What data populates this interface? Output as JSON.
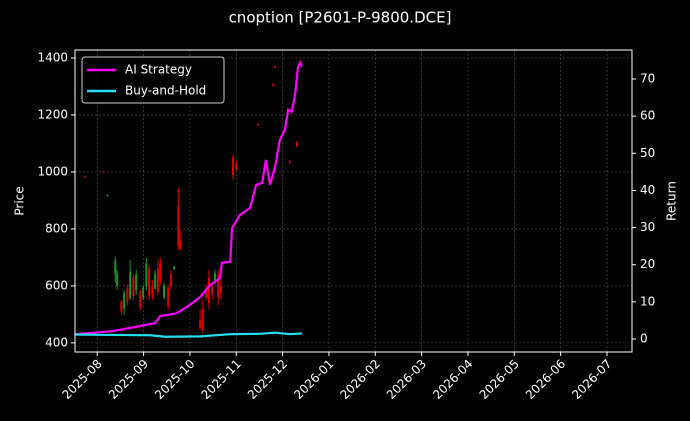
{
  "chart_data": {
    "type": "candlestick",
    "title": "cnoption [P2601-P-9800.DCE]",
    "ylabel": "Price",
    "y2label": "Return",
    "xlim": [
      -0.48,
      11.54
    ],
    "xticks": [
      {
        "value": 0,
        "label": "2025-08"
      },
      {
        "value": 1,
        "label": "2025-09"
      },
      {
        "value": 2,
        "label": "2025-10"
      },
      {
        "value": 3,
        "label": "2025-11"
      },
      {
        "value": 4,
        "label": "2025-12"
      },
      {
        "value": 5,
        "label": "2026-01"
      },
      {
        "value": 6,
        "label": "2026-02"
      },
      {
        "value": 7,
        "label": "2026-03"
      },
      {
        "value": 8,
        "label": "2026-04"
      },
      {
        "value": 9,
        "label": "2026-05"
      },
      {
        "value": 10,
        "label": "2026-06"
      },
      {
        "value": 11,
        "label": "2026-07"
      }
    ],
    "ylim": [
      368,
      1428
    ],
    "yticks": [
      400,
      600,
      800,
      1000,
      1200,
      1400
    ],
    "y2lim": [
      -3.5,
      77.8
    ],
    "y2ticks": [
      0,
      10,
      20,
      30,
      40,
      50,
      60,
      70
    ],
    "grid": true,
    "legend": "upper left",
    "up_color": "#1a9a1a",
    "down_color": "#e00000",
    "candles": {
      "x": [
        -0.26,
        0.13,
        0.22,
        0.39,
        0.43,
        0.52,
        0.58,
        0.65,
        0.71,
        0.78,
        0.84,
        0.93,
        0.99,
        1.06,
        1.12,
        1.19,
        1.25,
        1.31,
        1.36,
        1.44,
        1.53,
        1.59,
        1.66,
        1.75,
        1.79,
        2.22,
        2.28,
        2.35,
        2.41,
        2.48,
        2.54,
        2.61,
        2.67,
        2.93,
        3.0,
        3.47,
        3.79,
        3.84,
        4.16,
        4.31
      ],
      "open": [
        985,
        1002,
        915,
        640,
        600,
        545,
        520,
        590,
        560,
        630,
        585,
        580,
        560,
        600,
        660,
        600,
        590,
        660,
        680,
        560,
        590,
        640,
        660,
        880,
        760,
        480,
        520,
        590,
        630,
        600,
        610,
        640,
        600,
        1050,
        1030,
        1168,
        1307,
        1370,
        1038,
        1105
      ],
      "high": [
        988,
        1003,
        921,
        702,
        656,
        551,
        586,
        604,
        691,
        639,
        656,
        586,
        604,
        698,
        674,
        621,
        656,
        691,
        698,
        611,
        604,
        656,
        670,
        944,
        796,
        516,
        551,
        604,
        656,
        604,
        656,
        656,
        621,
        1060,
        1042,
        1170,
        1310,
        1372,
        1040,
        1108
      ],
      "low": [
        980,
        998,
        914,
        611,
        586,
        498,
        498,
        533,
        551,
        551,
        568,
        516,
        551,
        586,
        551,
        551,
        586,
        568,
        604,
        551,
        516,
        586,
        655,
        726,
        726,
        446,
        435,
        551,
        516,
        551,
        604,
        533,
        551,
        972,
        1007,
        1162,
        1300,
        1364,
        1030,
        1088
      ],
      "close": [
        981,
        999,
        920,
        690,
        640,
        510,
        575,
        545,
        650,
        565,
        640,
        525,
        595,
        680,
        565,
        560,
        640,
        580,
        620,
        600,
        530,
        600,
        668,
        740,
        730,
        455,
        445,
        560,
        540,
        570,
        645,
        560,
        575,
        990,
        1010,
        1163,
        1302,
        1365,
        1032,
        1090
      ]
    },
    "series": [
      {
        "name": "AI Strategy",
        "color": "#ff00ff",
        "axis": "y2",
        "x": [
          -0.47,
          0.32,
          0.93,
          1.25,
          1.36,
          1.68,
          1.79,
          2.0,
          2.22,
          2.44,
          2.65,
          2.69,
          2.87,
          2.91,
          3.08,
          3.3,
          3.43,
          3.56,
          3.64,
          3.73,
          3.84,
          3.94,
          4.05,
          4.12,
          4.2,
          4.27,
          4.33,
          4.38,
          4.42
        ],
        "values": [
          1.3,
          2.1,
          3.5,
          4.3,
          6.2,
          6.8,
          7.5,
          9.2,
          11.3,
          14.6,
          16.4,
          20.5,
          20.8,
          29.9,
          33.4,
          35.3,
          41.5,
          42,
          48.2,
          41.5,
          46.4,
          53.6,
          56.3,
          61.7,
          61.2,
          65.8,
          73,
          74.4,
          73.3
        ]
      },
      {
        "name": "Buy-and-Hold",
        "color": "#22e0f0",
        "axis": "y2",
        "x": [
          -0.47,
          0.28,
          1.14,
          1.47,
          2.22,
          2.87,
          3.51,
          3.84,
          4.16,
          4.42
        ],
        "values": [
          1.2,
          1.1,
          1.0,
          0.6,
          0.7,
          1.3,
          1.4,
          1.7,
          1.3,
          1.5
        ]
      }
    ]
  }
}
